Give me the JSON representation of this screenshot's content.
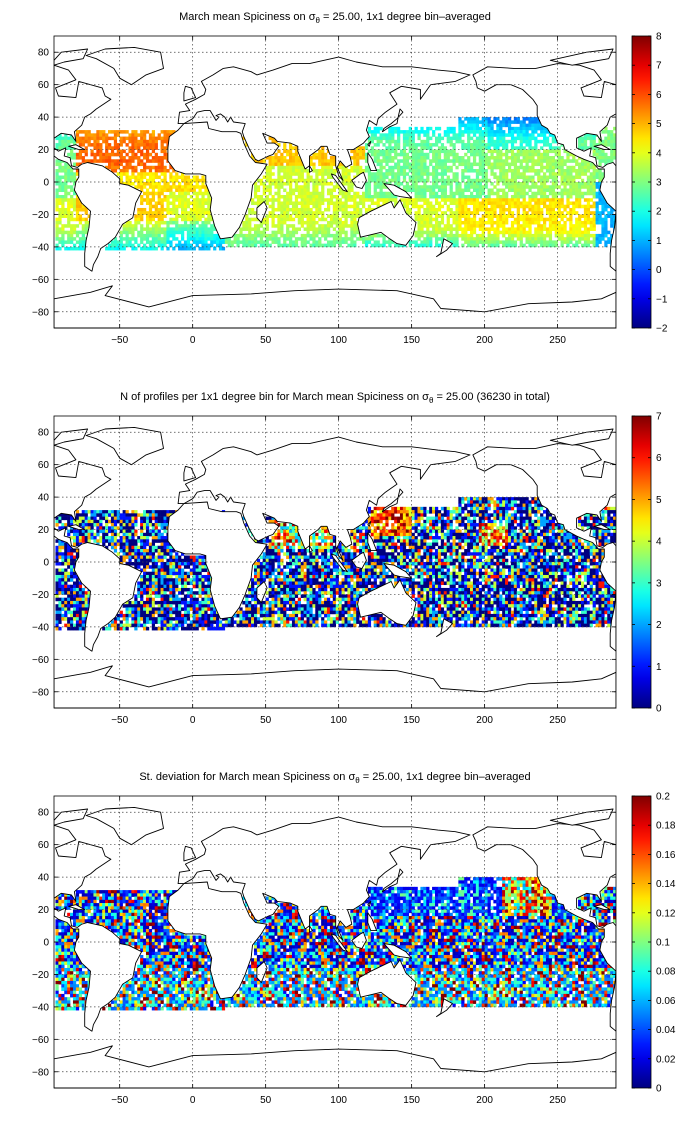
{
  "chart_data": [
    {
      "type": "heatmap",
      "title_parts": {
        "before": "March mean Spiciness on ",
        "sigma": "σ",
        "sub": "θ",
        "after": " = 25.00, 1x1 degree bin–averaged"
      },
      "x_ticks": [
        "−50",
        "0",
        "50",
        "100",
        "150",
        "200",
        "250"
      ],
      "x_tick_values": [
        -50,
        0,
        50,
        100,
        150,
        200,
        250
      ],
      "y_ticks": [
        "80",
        "60",
        "40",
        "20",
        "0",
        "−20",
        "−40",
        "−60",
        "−80"
      ],
      "y_tick_values": [
        80,
        60,
        40,
        20,
        0,
        -20,
        -40,
        -60,
        -80
      ],
      "xlim": [
        -95,
        290
      ],
      "ylim": [
        -90,
        90
      ],
      "grid": true,
      "colorbar": {
        "ticks": [
          "8",
          "7",
          "6",
          "5",
          "4",
          "3",
          "2",
          "1",
          "0",
          "−1",
          "−2"
        ],
        "range": [
          -2,
          8
        ],
        "colormap": "jet"
      },
      "field": "spiciness"
    },
    {
      "type": "heatmap",
      "title_parts": {
        "before": "N of profiles per 1x1 degree bin for March mean Spiciness on ",
        "sigma": "σ",
        "sub": "θ",
        "after": " = 25.00 (36230 in total)"
      },
      "x_ticks": [
        "−50",
        "0",
        "50",
        "100",
        "150",
        "200",
        "250"
      ],
      "x_tick_values": [
        -50,
        0,
        50,
        100,
        150,
        200,
        250
      ],
      "y_ticks": [
        "80",
        "60",
        "40",
        "20",
        "0",
        "−20",
        "−40",
        "−60",
        "−80"
      ],
      "y_tick_values": [
        80,
        60,
        40,
        20,
        0,
        -20,
        -40,
        -60,
        -80
      ],
      "xlim": [
        -95,
        290
      ],
      "ylim": [
        -90,
        90
      ],
      "grid": true,
      "colorbar": {
        "ticks": [
          "7",
          "6",
          "5",
          "4",
          "3",
          "2",
          "1",
          "0"
        ],
        "range": [
          0,
          7
        ],
        "colormap": "jet"
      },
      "field": "count"
    },
    {
      "type": "heatmap",
      "title_parts": {
        "before": "St. deviation for March mean Spiciness on ",
        "sigma": "σ",
        "sub": "θ",
        "after": " = 25.00, 1x1 degree bin–averaged"
      },
      "x_ticks": [
        "−50",
        "0",
        "50",
        "100",
        "150",
        "200",
        "250"
      ],
      "x_tick_values": [
        -50,
        0,
        50,
        100,
        150,
        200,
        250
      ],
      "y_ticks": [
        "80",
        "60",
        "40",
        "20",
        "0",
        "−20",
        "−40",
        "−60",
        "−80"
      ],
      "y_tick_values": [
        80,
        60,
        40,
        20,
        0,
        -20,
        -40,
        -60,
        -80
      ],
      "xlim": [
        -95,
        290
      ],
      "ylim": [
        -90,
        90
      ],
      "grid": true,
      "colorbar": {
        "ticks": [
          "0.2",
          "0.18",
          "0.16",
          "0.14",
          "0.12",
          "0.1",
          "0.08",
          "0.06",
          "0.04",
          "0.02",
          "0"
        ],
        "range": [
          0,
          0.2
        ],
        "colormap": "jet"
      },
      "field": "std"
    }
  ]
}
